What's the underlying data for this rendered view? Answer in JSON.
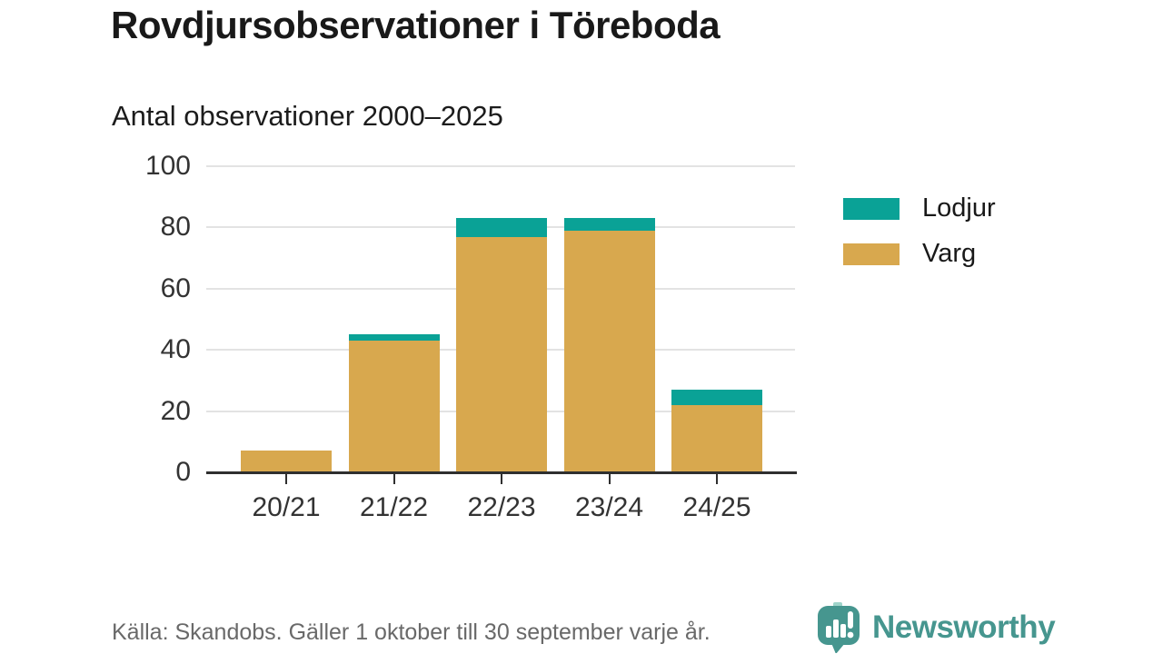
{
  "header": {
    "title": "Rovdjursobservationer i Töreboda",
    "subtitle": "Antal observationer 2000–2025"
  },
  "chart_data": {
    "type": "bar",
    "stacked": true,
    "title": "Rovdjursobservationer i Töreboda",
    "subtitle": "Antal observationer 2000–2025",
    "categories": [
      "20/21",
      "21/22",
      "22/23",
      "23/24",
      "24/25"
    ],
    "series": [
      {
        "name": "Varg",
        "color": "#d8a84e",
        "values": [
          7,
          43,
          77,
          79,
          22
        ]
      },
      {
        "name": "Lodjur",
        "color": "#0aa296",
        "values": [
          0,
          2,
          6,
          4,
          5
        ]
      }
    ],
    "totals": [
      7,
      45,
      83,
      83,
      27
    ],
    "xlabel": "",
    "ylabel": "",
    "ylim": [
      0,
      100
    ],
    "yticks": [
      0,
      20,
      40,
      60,
      80,
      100
    ],
    "grid": true,
    "legend_position": "right"
  },
  "legend": {
    "items": [
      {
        "label": "Lodjur",
        "color": "#0aa296"
      },
      {
        "label": "Varg",
        "color": "#d8a84e"
      }
    ]
  },
  "footer": {
    "source": "Källa: Skandobs. Gäller 1 oktober till 30 september varje år.",
    "brand": "Newsworthy"
  },
  "colors": {
    "lodjur_teal": "#0aa296",
    "varg_gold": "#d8a84e",
    "brand_teal": "#46968f",
    "brand_teal_light": "#9fd4ca",
    "axis": "#2f2f2f",
    "gridline": "#e3e3e3",
    "text_dark": "#191919",
    "text_axis": "#333333",
    "text_muted": "#696969"
  }
}
